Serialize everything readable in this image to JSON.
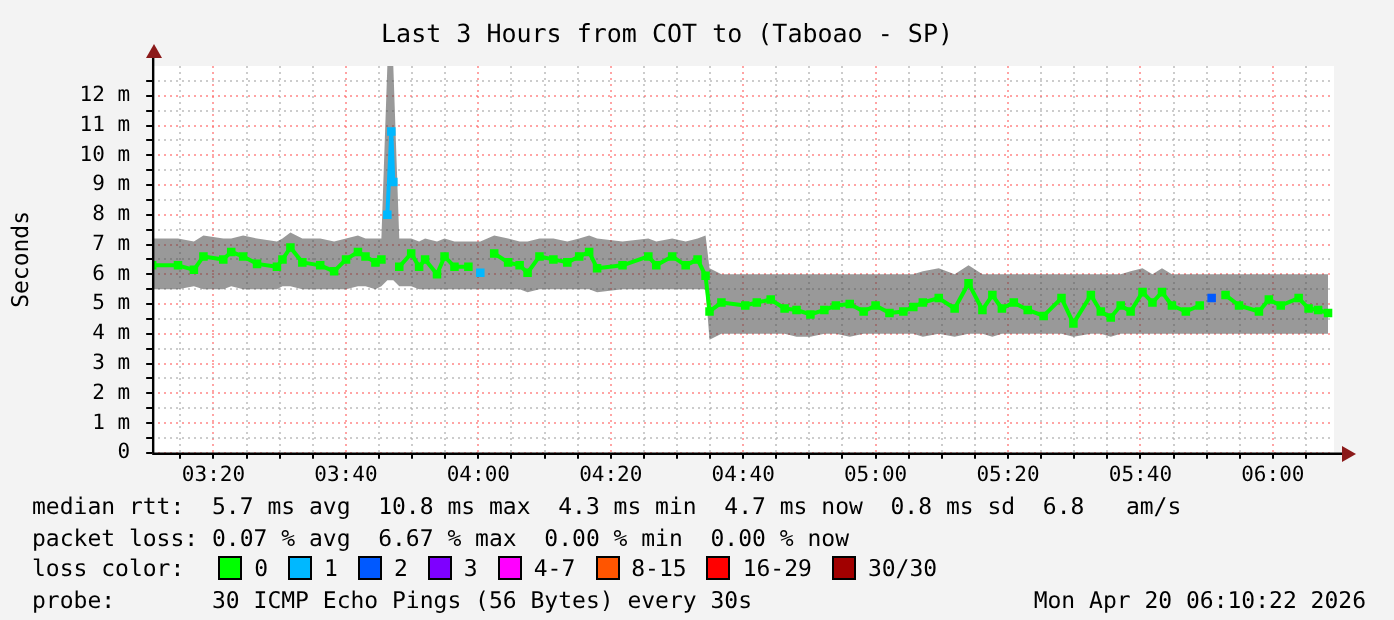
{
  "chart_data": {
    "type": "line",
    "title": "Last 3 Hours from COT to (Taboao - SP)",
    "ylabel": "Seconds",
    "legend_title": "loss color:",
    "legend": "bottom",
    "grid": true,
    "marker": "square",
    "line_style": "solid",
    "xlim": [
      3.179,
      6.154
    ],
    "xticks": [
      {
        "value": 3.25,
        "label": null
      },
      {
        "value": 3.3333,
        "label": "03:20"
      },
      {
        "value": 3.4167,
        "label": null
      },
      {
        "value": 3.5,
        "label": null
      },
      {
        "value": 3.5833,
        "label": null
      },
      {
        "value": 3.6667,
        "label": "03:40"
      },
      {
        "value": 3.75,
        "label": null
      },
      {
        "value": 3.8333,
        "label": null
      },
      {
        "value": 3.9167,
        "label": null
      },
      {
        "value": 4,
        "label": "04:00"
      },
      {
        "value": 4.0833,
        "label": null
      },
      {
        "value": 4.1667,
        "label": null
      },
      {
        "value": 4.25,
        "label": null
      },
      {
        "value": 4.3333,
        "label": "04:20"
      },
      {
        "value": 4.4167,
        "label": null
      },
      {
        "value": 4.5,
        "label": null
      },
      {
        "value": 4.5833,
        "label": null
      },
      {
        "value": 4.6667,
        "label": "04:40"
      },
      {
        "value": 4.75,
        "label": null
      },
      {
        "value": 4.8333,
        "label": null
      },
      {
        "value": 4.9167,
        "label": null
      },
      {
        "value": 5,
        "label": "05:00"
      },
      {
        "value": 5.0833,
        "label": null
      },
      {
        "value": 5.1667,
        "label": null
      },
      {
        "value": 5.25,
        "label": null
      },
      {
        "value": 5.3333,
        "label": "05:20"
      },
      {
        "value": 5.4167,
        "label": null
      },
      {
        "value": 5.5,
        "label": null
      },
      {
        "value": 5.5833,
        "label": null
      },
      {
        "value": 5.6667,
        "label": "05:40"
      },
      {
        "value": 5.75,
        "label": null
      },
      {
        "value": 5.8333,
        "label": null
      },
      {
        "value": 5.9167,
        "label": null
      },
      {
        "value": 6,
        "label": "06:00"
      },
      {
        "value": 6.0833,
        "label": null
      }
    ],
    "ylim": [
      0,
      13
    ],
    "yticks": [
      0,
      {
        "value": 0.5,
        "label": null
      },
      {
        "value": 1,
        "label": "1 m"
      },
      {
        "value": 1.5,
        "label": null
      },
      {
        "value": 2,
        "label": "2 m"
      },
      {
        "value": 2.5,
        "label": null
      },
      {
        "value": 3,
        "label": "3 m"
      },
      {
        "value": 3.5,
        "label": null
      },
      {
        "value": 4,
        "label": "4 m"
      },
      {
        "value": 4.5,
        "label": null
      },
      {
        "value": 5,
        "label": "5 m"
      },
      {
        "value": 5.5,
        "label": null
      },
      {
        "value": 6,
        "label": "6 m"
      },
      {
        "value": 6.5,
        "label": null
      },
      {
        "value": 7,
        "label": "7 m"
      },
      {
        "value": 7.5,
        "label": null
      },
      {
        "value": 8,
        "label": "8 m"
      },
      {
        "value": 8.5,
        "label": null
      },
      {
        "value": 9,
        "label": "9 m"
      },
      {
        "value": 9.5,
        "label": null
      },
      {
        "value": 10,
        "label": "10 m"
      },
      {
        "value": 10.5,
        "label": null
      },
      {
        "value": 11,
        "label": "11 m"
      },
      {
        "value": 11.5,
        "label": null
      },
      {
        "value": 12,
        "label": "12 m"
      },
      {
        "value": 12.5,
        "label": null
      }
    ],
    "x": [
      3.179,
      3.244,
      3.284,
      3.308,
      3.358,
      3.378,
      3.408,
      3.443,
      3.493,
      3.507,
      3.527,
      3.557,
      3.602,
      3.637,
      3.667,
      3.697,
      3.716,
      3.741,
      3.756,
      3.771,
      3.781,
      3.786,
      3.801,
      3.831,
      3.851,
      3.866,
      3.896,
      3.915,
      3.94,
      3.975,
      4.005,
      4.04,
      4.075,
      4.104,
      4.124,
      4.154,
      4.189,
      4.224,
      4.254,
      4.279,
      4.299,
      4.363,
      4.428,
      4.448,
      4.488,
      4.522,
      4.552,
      4.572,
      4.582,
      4.612,
      4.672,
      4.701,
      4.736,
      4.771,
      4.801,
      4.836,
      4.871,
      4.9,
      4.935,
      4.97,
      5,
      5.035,
      5.07,
      5.095,
      5.119,
      5.159,
      5.199,
      5.234,
      5.269,
      5.294,
      5.318,
      5.348,
      5.383,
      5.423,
      5.468,
      5.498,
      5.542,
      5.567,
      5.592,
      5.617,
      5.642,
      5.672,
      5.697,
      5.721,
      5.746,
      5.781,
      5.816,
      5.846,
      5.881,
      5.915,
      5.965,
      5.99,
      6.02,
      6.065,
      6.09,
      6.114,
      6.139
    ],
    "series": [
      {
        "name": "0",
        "color": "#00ff00",
        "values": [
          6.3,
          6.3,
          6.15,
          6.6,
          6.5,
          6.75,
          6.6,
          6.35,
          6.25,
          6.5,
          6.9,
          6.4,
          6.3,
          6.1,
          6.5,
          6.75,
          6.6,
          6.4,
          6.5,
          null,
          null,
          null,
          6.25,
          6.7,
          6.25,
          6.5,
          6.0,
          6.6,
          6.25,
          6.25,
          null,
          6.7,
          6.4,
          6.3,
          6.05,
          6.6,
          6.5,
          6.4,
          6.6,
          6.75,
          6.2,
          6.3,
          6.6,
          6.3,
          6.6,
          6.3,
          6.5,
          5.95,
          4.75,
          5.05,
          4.95,
          5.05,
          5.15,
          4.85,
          4.8,
          4.65,
          4.8,
          4.95,
          5.0,
          4.75,
          4.95,
          4.7,
          4.75,
          4.9,
          5.05,
          5.2,
          4.85,
          5.7,
          4.8,
          5.3,
          4.85,
          5.05,
          4.8,
          4.6,
          5.2,
          4.35,
          5.3,
          4.75,
          4.55,
          4.95,
          4.75,
          5.4,
          5.05,
          5.4,
          4.95,
          4.75,
          4.95,
          null,
          5.3,
          4.95,
          4.75,
          5.15,
          4.95,
          5.2,
          4.85,
          4.8,
          4.7
        ],
        "lower": [
          5.5,
          5.5,
          5.6,
          5.5,
          5.5,
          5.6,
          5.5,
          5.5,
          5.5,
          5.6,
          5.6,
          5.5,
          5.5,
          5.5,
          5.5,
          5.6,
          5.6,
          5.5,
          5.6,
          5.8,
          5.8,
          5.8,
          5.6,
          5.6,
          5.5,
          5.5,
          5.5,
          5.5,
          5.5,
          5.5,
          5.5,
          5.5,
          5.5,
          5.5,
          5.4,
          5.5,
          5.5,
          5.5,
          5.5,
          5.5,
          5.4,
          5.5,
          5.5,
          5.5,
          5.5,
          5.5,
          5.5,
          5.5,
          3.8,
          4.0,
          4.0,
          4.0,
          4.0,
          4.0,
          3.9,
          3.9,
          4.0,
          4.0,
          3.9,
          4.0,
          4.0,
          4.0,
          4.0,
          4.0,
          3.9,
          4.0,
          3.9,
          4.0,
          4.0,
          3.9,
          4.0,
          4.0,
          4.0,
          4.0,
          4.0,
          3.9,
          4.0,
          4.0,
          3.9,
          4.0,
          4.0,
          4.0,
          4.0,
          4.0,
          4.0,
          4.0,
          4.0,
          4.0,
          4.0,
          4.0,
          4.0,
          4.0,
          4.0,
          4.0,
          4.0,
          4.0,
          4.0
        ],
        "upper": [
          7.2,
          7.2,
          7.1,
          7.3,
          7.2,
          7.2,
          7.3,
          7.2,
          7.1,
          7.2,
          7.4,
          7.2,
          7.2,
          7.1,
          7.2,
          7.3,
          7.2,
          7.2,
          7.2,
          13,
          13,
          13,
          7.2,
          7.2,
          7.1,
          7.2,
          7.1,
          7.2,
          7.1,
          7.1,
          7.1,
          7.3,
          7.2,
          7.1,
          7.1,
          7.2,
          7.2,
          7.1,
          7.2,
          7.3,
          7.2,
          7.1,
          7.2,
          7.1,
          7.2,
          7.1,
          7.2,
          7.3,
          6.2,
          6.0,
          6.0,
          6.0,
          6.0,
          6.0,
          6.0,
          6.0,
          6.0,
          6.0,
          6.0,
          6.0,
          6.0,
          6.0,
          6.0,
          6.0,
          6.1,
          6.2,
          6.0,
          6.3,
          6.0,
          6.0,
          6.0,
          6.0,
          6.0,
          6.0,
          6.0,
          6.0,
          6.0,
          6.0,
          6.0,
          6.0,
          6.1,
          6.2,
          6.0,
          6.2,
          6.0,
          6.0,
          6.0,
          6.0,
          6.0,
          6.0,
          6.0,
          6.0,
          6.0,
          6.0,
          6.0,
          6.0,
          6.0
        ]
      },
      {
        "name": "1",
        "color": "#00b8ff",
        "values": [
          null,
          null,
          null,
          null,
          null,
          null,
          null,
          null,
          null,
          null,
          null,
          null,
          null,
          null,
          null,
          null,
          null,
          null,
          null,
          8.0,
          10.8,
          9.1,
          null,
          null,
          null,
          null,
          null,
          null,
          null,
          null,
          6.05,
          null,
          null,
          null,
          null,
          null,
          null,
          null,
          null,
          null,
          null,
          null,
          null,
          null,
          null,
          null,
          null,
          null,
          null,
          null,
          null,
          null,
          null,
          null,
          null,
          null,
          null,
          null,
          null,
          null,
          null,
          null,
          null,
          null,
          null,
          null,
          null,
          null,
          null,
          null,
          null,
          null,
          null,
          null,
          null,
          null,
          null,
          null,
          null,
          null,
          null,
          null,
          null,
          null,
          null,
          null,
          null,
          null,
          null,
          null,
          null,
          null,
          null,
          null,
          null,
          null,
          null
        ]
      },
      {
        "name": "2",
        "color": "#0059ff",
        "values": [
          null,
          null,
          null,
          null,
          null,
          null,
          null,
          null,
          null,
          null,
          null,
          null,
          null,
          null,
          null,
          null,
          null,
          null,
          null,
          null,
          null,
          null,
          null,
          null,
          null,
          null,
          null,
          null,
          null,
          null,
          null,
          null,
          null,
          null,
          null,
          null,
          null,
          null,
          null,
          null,
          null,
          null,
          null,
          null,
          null,
          null,
          null,
          null,
          null,
          null,
          null,
          null,
          null,
          null,
          null,
          null,
          null,
          null,
          null,
          null,
          null,
          null,
          null,
          null,
          null,
          null,
          null,
          null,
          null,
          null,
          null,
          null,
          null,
          null,
          null,
          null,
          null,
          null,
          null,
          null,
          null,
          null,
          null,
          null,
          null,
          null,
          null,
          5.2,
          null,
          null,
          null,
          null,
          null,
          null,
          null,
          null,
          null
        ]
      },
      {
        "name": "3",
        "color": "#7e00ff",
        "values": [
          null,
          null,
          null,
          null,
          null,
          null,
          null,
          null,
          null,
          null,
          null,
          null,
          null,
          null,
          null,
          null,
          null,
          null,
          null,
          null,
          null,
          null,
          null,
          null,
          null,
          null,
          null,
          null,
          null,
          null,
          null,
          null,
          null,
          null,
          null,
          null,
          null,
          null,
          null,
          null,
          null,
          null,
          null,
          null,
          null,
          null,
          null,
          null,
          null,
          null,
          null,
          null,
          null,
          null,
          null,
          null,
          null,
          null,
          null,
          null,
          null,
          null,
          null,
          null,
          null,
          null,
          null,
          null,
          null,
          null,
          null,
          null,
          null,
          null,
          null,
          null,
          null,
          null,
          null,
          null,
          null,
          null,
          null,
          null,
          null,
          null,
          null,
          null,
          null,
          null,
          null,
          null,
          null,
          null,
          null,
          null,
          null
        ]
      },
      {
        "name": "4-7",
        "color": "#ff00ff",
        "values": [
          null,
          null,
          null,
          null,
          null,
          null,
          null,
          null,
          null,
          null,
          null,
          null,
          null,
          null,
          null,
          null,
          null,
          null,
          null,
          null,
          null,
          null,
          null,
          null,
          null,
          null,
          null,
          null,
          null,
          null,
          null,
          null,
          null,
          null,
          null,
          null,
          null,
          null,
          null,
          null,
          null,
          null,
          null,
          null,
          null,
          null,
          null,
          null,
          null,
          null,
          null,
          null,
          null,
          null,
          null,
          null,
          null,
          null,
          null,
          null,
          null,
          null,
          null,
          null,
          null,
          null,
          null,
          null,
          null,
          null,
          null,
          null,
          null,
          null,
          null,
          null,
          null,
          null,
          null,
          null,
          null,
          null,
          null,
          null,
          null,
          null,
          null,
          null,
          null,
          null,
          null,
          null,
          null,
          null,
          null,
          null,
          null
        ]
      },
      {
        "name": "8-15",
        "color": "#ff5500",
        "values": [
          null,
          null,
          null,
          null,
          null,
          null,
          null,
          null,
          null,
          null,
          null,
          null,
          null,
          null,
          null,
          null,
          null,
          null,
          null,
          null,
          null,
          null,
          null,
          null,
          null,
          null,
          null,
          null,
          null,
          null,
          null,
          null,
          null,
          null,
          null,
          null,
          null,
          null,
          null,
          null,
          null,
          null,
          null,
          null,
          null,
          null,
          null,
          null,
          null,
          null,
          null,
          null,
          null,
          null,
          null,
          null,
          null,
          null,
          null,
          null,
          null,
          null,
          null,
          null,
          null,
          null,
          null,
          null,
          null,
          null,
          null,
          null,
          null,
          null,
          null,
          null,
          null,
          null,
          null,
          null,
          null,
          null,
          null,
          null,
          null,
          null,
          null,
          null,
          null,
          null,
          null,
          null,
          null,
          null,
          null,
          null,
          null
        ]
      },
      {
        "name": "16-29",
        "color": "#ff0000",
        "values": [
          null,
          null,
          null,
          null,
          null,
          null,
          null,
          null,
          null,
          null,
          null,
          null,
          null,
          null,
          null,
          null,
          null,
          null,
          null,
          null,
          null,
          null,
          null,
          null,
          null,
          null,
          null,
          null,
          null,
          null,
          null,
          null,
          null,
          null,
          null,
          null,
          null,
          null,
          null,
          null,
          null,
          null,
          null,
          null,
          null,
          null,
          null,
          null,
          null,
          null,
          null,
          null,
          null,
          null,
          null,
          null,
          null,
          null,
          null,
          null,
          null,
          null,
          null,
          null,
          null,
          null,
          null,
          null,
          null,
          null,
          null,
          null,
          null,
          null,
          null,
          null,
          null,
          null,
          null,
          null,
          null,
          null,
          null,
          null,
          null,
          null,
          null,
          null,
          null,
          null,
          null,
          null,
          null,
          null,
          null,
          null,
          null
        ]
      },
      {
        "name": "30/30",
        "color": "#a10000",
        "values": [
          null,
          null,
          null,
          null,
          null,
          null,
          null,
          null,
          null,
          null,
          null,
          null,
          null,
          null,
          null,
          null,
          null,
          null,
          null,
          null,
          null,
          null,
          null,
          null,
          null,
          null,
          null,
          null,
          null,
          null,
          null,
          null,
          null,
          null,
          null,
          null,
          null,
          null,
          null,
          null,
          null,
          null,
          null,
          null,
          null,
          null,
          null,
          null,
          null,
          null,
          null,
          null,
          null,
          null,
          null,
          null,
          null,
          null,
          null,
          null,
          null,
          null,
          null,
          null,
          null,
          null,
          null,
          null,
          null,
          null,
          null,
          null,
          null,
          null,
          null,
          null,
          null,
          null,
          null,
          null,
          null,
          null,
          null,
          null,
          null,
          null,
          null,
          null,
          null,
          null,
          null,
          null,
          null,
          null,
          null,
          null,
          null
        ]
      }
    ],
    "annotations": [
      "median rtt:  5.7 ms avg  10.8 ms max  4.3 ms min  4.7 ms now  0.8 ms sd  6.8   am/s",
      "packet loss: 0.07 % avg  6.67 % max  0.00 % min  0.00 % now",
      "probe:       30 ICMP Echo Pings (56 Bytes) every 30s",
      "Mon Apr 20 06:10:22 2026"
    ]
  }
}
